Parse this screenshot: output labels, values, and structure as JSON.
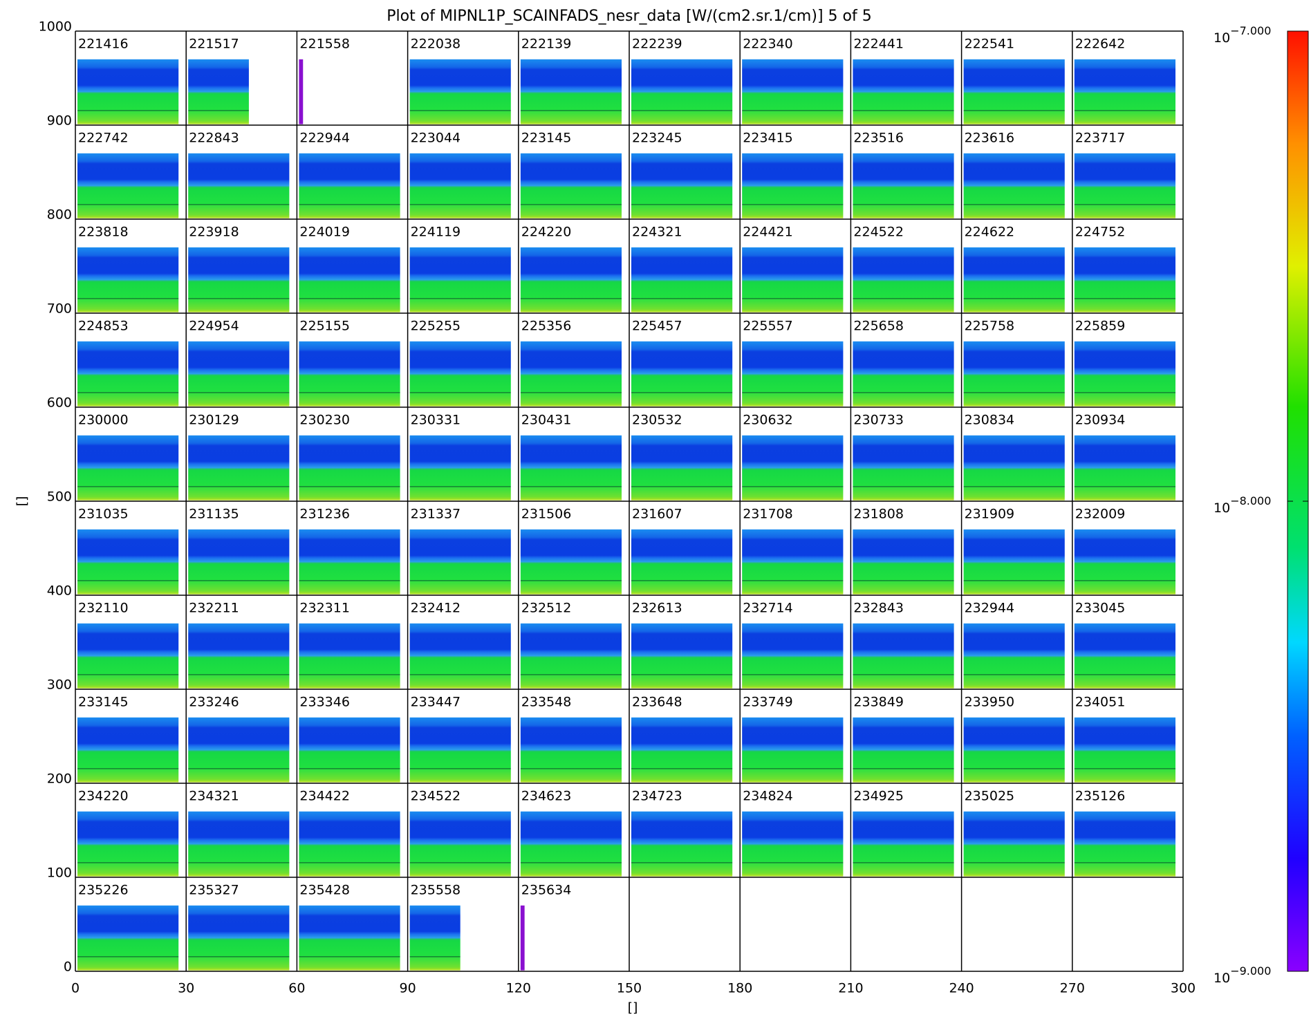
{
  "chart_data": {
    "type": "panel-grid",
    "title": "Plot of MIPNL1P_SCAINFADS_nesr_data [W/(cm2.sr.1/cm)] 5 of 5",
    "xlabel": "[]",
    "ylabel": "[]",
    "xlim": [
      0,
      300
    ],
    "xticks": [
      0,
      30,
      60,
      90,
      120,
      150,
      180,
      210,
      240,
      270,
      300
    ],
    "ylim": [
      0,
      1000
    ],
    "yticks": [
      0,
      100,
      200,
      300,
      400,
      500,
      600,
      700,
      800,
      900,
      1000
    ],
    "grid": true,
    "columns": 10,
    "panels": [
      "221416",
      "221517",
      "221558",
      "222038",
      "222139",
      "222239",
      "222340",
      "222441",
      "222541",
      "222642",
      "222742",
      "222843",
      "222944",
      "223044",
      "223145",
      "223245",
      "223415",
      "223516",
      "223616",
      "223717",
      "223818",
      "223918",
      "224019",
      "224119",
      "224220",
      "224321",
      "224421",
      "224522",
      "224622",
      "224752",
      "224853",
      "224954",
      "225155",
      "225255",
      "225356",
      "225457",
      "225557",
      "225658",
      "225758",
      "225859",
      "230000",
      "230129",
      "230230",
      "230331",
      "230431",
      "230532",
      "230632",
      "230733",
      "230834",
      "230934",
      "231035",
      "231135",
      "231236",
      "231337",
      "231506",
      "231607",
      "231708",
      "231808",
      "231909",
      "232009",
      "232110",
      "232211",
      "232311",
      "232412",
      "232512",
      "232613",
      "232714",
      "232843",
      "232944",
      "233045",
      "233145",
      "233246",
      "233346",
      "233447",
      "233548",
      "233648",
      "233749",
      "233849",
      "233950",
      "234051",
      "234220",
      "234321",
      "234422",
      "234522",
      "234623",
      "234723",
      "234824",
      "234925",
      "235025",
      "235126",
      "235226",
      "235327",
      "235428",
      "235558",
      "235634"
    ],
    "colorbar": {
      "scale": "log",
      "lim": [
        1e-09,
        1e-07
      ],
      "ticks": [
        {
          "value": 1e-09,
          "label": "10",
          "exponent": "−9.000"
        },
        {
          "value": 1e-08,
          "label": "10",
          "exponent": "−8.000"
        },
        {
          "value": 1e-07,
          "label": "10",
          "exponent": "−7.000"
        }
      ]
    }
  }
}
